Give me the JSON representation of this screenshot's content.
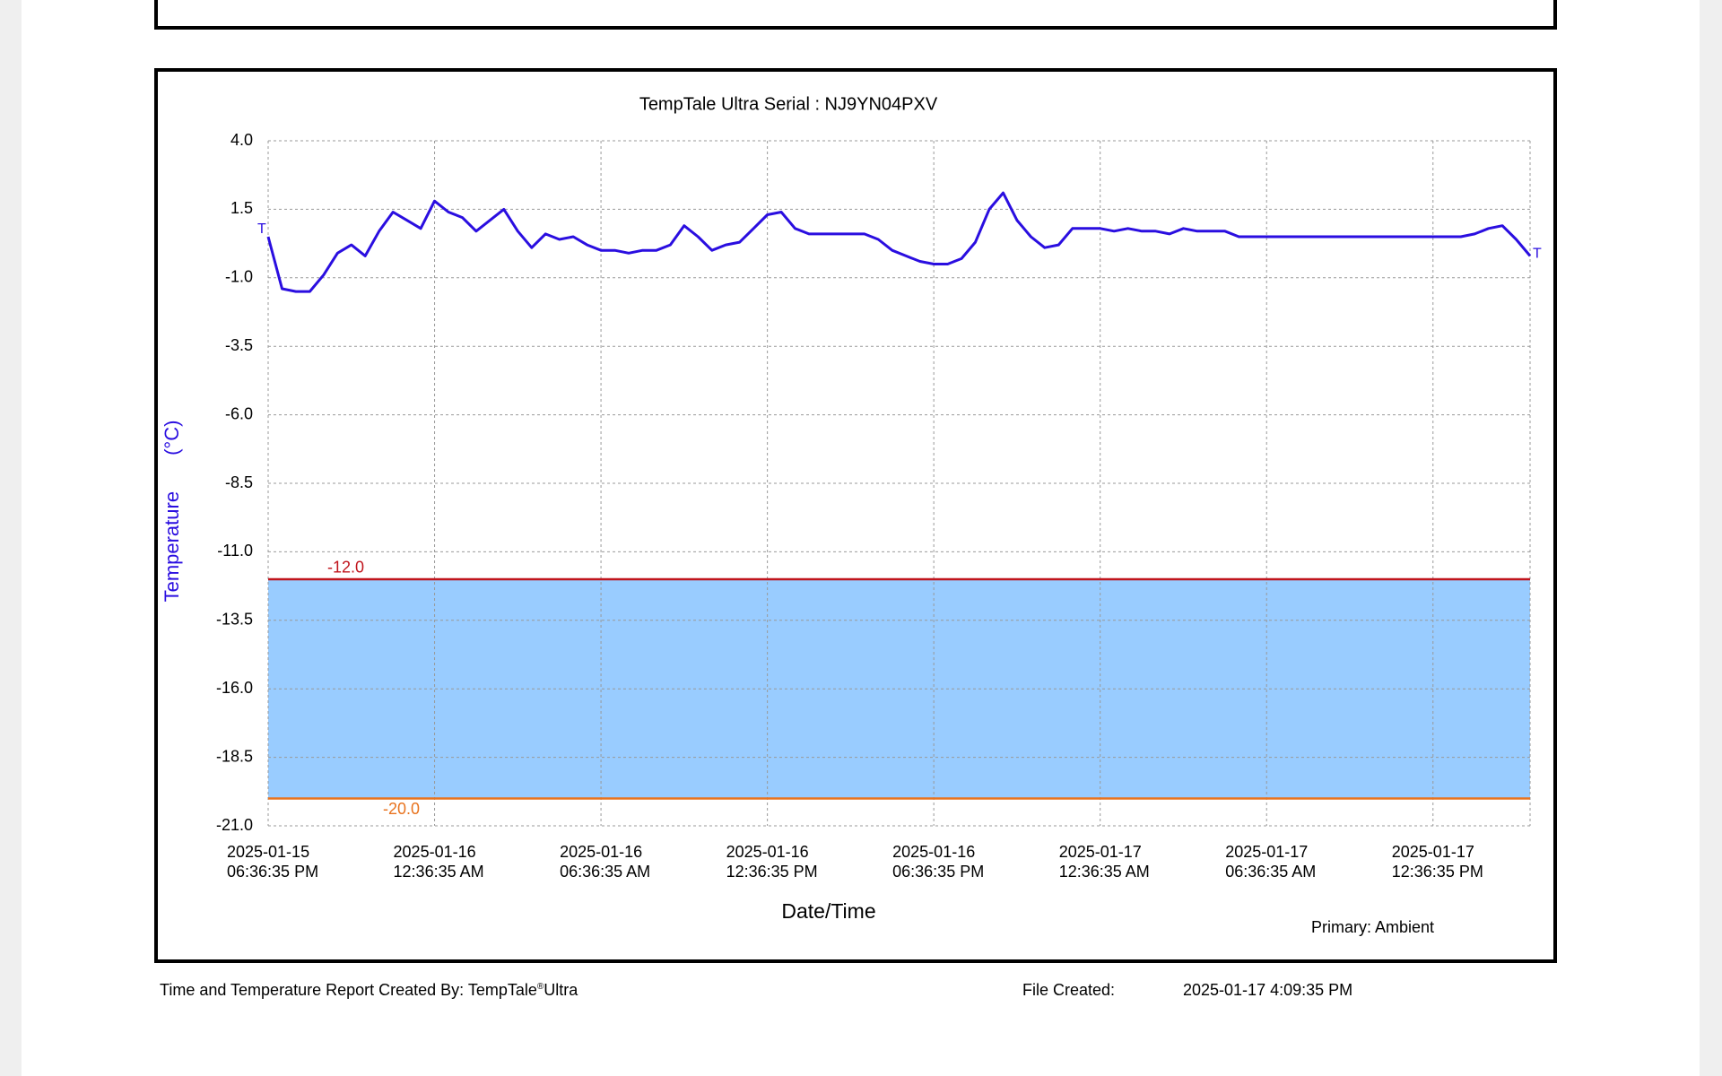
{
  "chart_data": {
    "type": "line",
    "title": "TempTale Ultra  Serial : NJ9YN04PXV",
    "y_label": "Temperature",
    "y_unit": "(°C)",
    "x_label": "Date/Time",
    "note": "Primary: Ambient",
    "start_marker": "T",
    "end_marker": "T",
    "color": "#2a0ee0",
    "band_color": "#99ccff",
    "thresholds": [
      {
        "value": -12,
        "label": "-12.0",
        "color": "#c0141c"
      },
      {
        "value": -20,
        "label": "-20.0",
        "color": "#e8731e"
      }
    ],
    "ylim": [
      -21,
      4
    ],
    "yticks": [
      {
        "value": 4,
        "label": "4.0"
      },
      1.5,
      {
        "value": -1,
        "label": "-1.0"
      },
      -3.5,
      {
        "value": -6,
        "label": "-6.0"
      },
      -8.5,
      {
        "value": -11,
        "label": "-11.0"
      },
      -13.5,
      {
        "value": -16,
        "label": "-16.0"
      },
      -18.5,
      {
        "value": -21,
        "label": "-21.0"
      }
    ],
    "xlim": [
      "2025-01-15 18:36:35",
      "2025-01-17 16:06:35"
    ],
    "xticks": [
      {
        "value": "2025-01-15 18:36:35",
        "label": "2025-01-15\n06:36:35 PM"
      },
      {
        "value": "2025-01-16 00:36:35",
        "label": "2025-01-16\n12:36:35 AM"
      },
      {
        "value": "2025-01-16 06:36:35",
        "label": "2025-01-16\n06:36:35 AM"
      },
      {
        "value": "2025-01-16 12:36:35",
        "label": "2025-01-16\n12:36:35 PM"
      },
      {
        "value": "2025-01-16 18:36:35",
        "label": "2025-01-16\n06:36:35 PM"
      },
      {
        "value": "2025-01-17 00:36:35",
        "label": "2025-01-17\n12:36:35 AM"
      },
      {
        "value": "2025-01-17 06:36:35",
        "label": "2025-01-17\n06:36:35 AM"
      },
      {
        "value": "2025-01-17 12:36:35",
        "label": "2025-01-17\n12:36:35 PM"
      }
    ],
    "grid": true,
    "x": [
      "2025-01-15 18:36:35",
      "2025-01-15 19:06:35",
      "2025-01-15 19:36:35",
      "2025-01-15 20:06:35",
      "2025-01-15 20:36:35",
      "2025-01-15 21:06:35",
      "2025-01-15 21:36:35",
      "2025-01-15 22:06:35",
      "2025-01-15 22:36:35",
      "2025-01-15 23:06:35",
      "2025-01-15 23:36:35",
      "2025-01-16 00:06:35",
      "2025-01-16 00:36:35",
      "2025-01-16 01:06:35",
      "2025-01-16 01:36:35",
      "2025-01-16 02:06:35",
      "2025-01-16 02:36:35",
      "2025-01-16 03:06:35",
      "2025-01-16 03:36:35",
      "2025-01-16 04:06:35",
      "2025-01-16 04:36:35",
      "2025-01-16 05:06:35",
      "2025-01-16 05:36:35",
      "2025-01-16 06:06:35",
      "2025-01-16 06:36:35",
      "2025-01-16 07:06:35",
      "2025-01-16 07:36:35",
      "2025-01-16 08:06:35",
      "2025-01-16 08:36:35",
      "2025-01-16 09:06:35",
      "2025-01-16 09:36:35",
      "2025-01-16 10:06:35",
      "2025-01-16 10:36:35",
      "2025-01-16 11:06:35",
      "2025-01-16 11:36:35",
      "2025-01-16 12:06:35",
      "2025-01-16 12:36:35",
      "2025-01-16 13:06:35",
      "2025-01-16 13:36:35",
      "2025-01-16 14:06:35",
      "2025-01-16 14:36:35",
      "2025-01-16 15:06:35",
      "2025-01-16 15:36:35",
      "2025-01-16 16:06:35",
      "2025-01-16 16:36:35",
      "2025-01-16 17:06:35",
      "2025-01-16 17:36:35",
      "2025-01-16 18:06:35",
      "2025-01-16 18:36:35",
      "2025-01-16 19:06:35",
      "2025-01-16 19:36:35",
      "2025-01-16 20:06:35",
      "2025-01-16 20:36:35",
      "2025-01-16 21:06:35",
      "2025-01-16 21:36:35",
      "2025-01-16 22:06:35",
      "2025-01-16 22:36:35",
      "2025-01-16 23:06:35",
      "2025-01-16 23:36:35",
      "2025-01-17 00:06:35",
      "2025-01-17 00:36:35",
      "2025-01-17 01:06:35",
      "2025-01-17 01:36:35",
      "2025-01-17 02:06:35",
      "2025-01-17 02:36:35",
      "2025-01-17 03:06:35",
      "2025-01-17 03:36:35",
      "2025-01-17 04:06:35",
      "2025-01-17 04:36:35",
      "2025-01-17 05:06:35",
      "2025-01-17 05:36:35",
      "2025-01-17 06:06:35",
      "2025-01-17 06:36:35",
      "2025-01-17 07:06:35",
      "2025-01-17 07:36:35",
      "2025-01-17 08:06:35",
      "2025-01-17 08:36:35",
      "2025-01-17 09:06:35",
      "2025-01-17 09:36:35",
      "2025-01-17 10:06:35",
      "2025-01-17 10:36:35",
      "2025-01-17 11:06:35",
      "2025-01-17 11:36:35",
      "2025-01-17 12:06:35",
      "2025-01-17 12:36:35",
      "2025-01-17 13:06:35",
      "2025-01-17 13:36:35",
      "2025-01-17 14:06:35",
      "2025-01-17 14:36:35",
      "2025-01-17 15:06:35",
      "2025-01-17 15:36:35",
      "2025-01-17 16:06:35"
    ],
    "values": [
      0.5,
      -1.4,
      -1.5,
      -1.5,
      -0.9,
      -0.1,
      0.2,
      -0.2,
      0.7,
      1.4,
      1.1,
      0.8,
      1.8,
      1.4,
      1.2,
      0.7,
      1.1,
      1.5,
      0.7,
      0.1,
      0.6,
      0.4,
      0.5,
      0.2,
      0.0,
      0.0,
      -0.1,
      0.0,
      0.0,
      0.2,
      0.9,
      0.5,
      0.0,
      0.2,
      0.3,
      0.8,
      1.3,
      1.4,
      0.8,
      0.6,
      0.6,
      0.6,
      0.6,
      0.6,
      0.4,
      0.0,
      -0.2,
      -0.4,
      -0.5,
      -0.5,
      -0.3,
      0.3,
      1.5,
      2.1,
      1.1,
      0.5,
      0.1,
      0.2,
      0.8,
      0.8,
      0.8,
      0.7,
      0.8,
      0.7,
      0.7,
      0.6,
      0.8,
      0.7,
      0.7,
      0.7,
      0.5,
      0.5,
      0.5,
      0.5,
      0.5,
      0.5,
      0.5,
      0.5,
      0.5,
      0.5,
      0.5,
      0.5,
      0.5,
      0.5,
      0.5,
      0.5,
      0.5,
      0.6,
      0.8,
      0.9,
      0.4,
      -0.2
    ]
  },
  "footer": {
    "created_by": "Time and Temperature Report Created By:  TempTale",
    "registered": "®",
    "product": "Ultra",
    "file_created_label": "File Created:",
    "file_created": "2025-01-17  4:09:35 PM"
  }
}
